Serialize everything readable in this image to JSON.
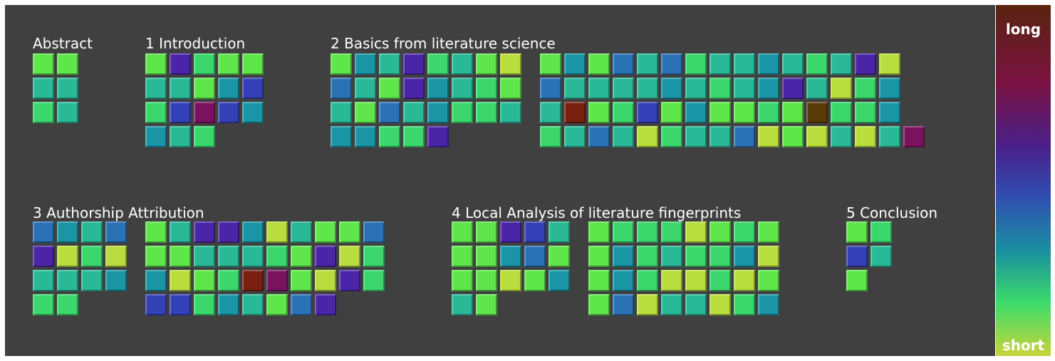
{
  "chart_data": {
    "type": "heatmap",
    "colors": {
      "Y": "#b9dd3c",
      "G": "#5ee64a",
      "E": "#3bd76c",
      "T": "#2ab996",
      "C": "#1a95a5",
      "B": "#2a71b5",
      "D": "#3440b5",
      "P": "#4b25a8",
      "M": "#7a1260",
      "R": "#7a2010",
      "N": "#5a3a08"
    },
    "legend": {
      "top_label": "long",
      "bottom_label": "short"
    },
    "sections": [
      {
        "title": "Abstract",
        "blocks": [
          {
            "rows": [
              "GG",
              "TT",
              "ET"
            ]
          }
        ]
      },
      {
        "title": "1 Introduction",
        "blocks": [
          {
            "rows": [
              "GPEGG",
              "TTGCD",
              "EDMDC",
              "CTE"
            ]
          }
        ]
      },
      {
        "title": "2 Basics from literature science",
        "blocks": [
          {
            "rows": [
              "GCTPETGY",
              "BTGPCTEG",
              "TGBTCEET",
              "CCEEP"
            ]
          },
          {
            "rows": [
              "GCGBTBETTCTETPY",
              "BTTTTCTETCPTYEC",
              "TRGEDGCGGEGNEEC",
              "ETBTYETTBYGYTYTM"
            ]
          }
        ]
      },
      {
        "title": "3 Authorship Attribution",
        "blocks": [
          {
            "rows": [
              "BCTB",
              "PYEY",
              "TTTC",
              "EE"
            ]
          },
          {
            "rows": [
              "GTPPCYTGGB",
              "GGTTTEGPYE",
              "CYGERMGYPE",
              "DDECTGBP"
            ]
          }
        ]
      },
      {
        "title": "4 Local Analysis of literature fingerprints",
        "blocks": [
          {
            "rows": [
              "GGPDT",
              "GGCBG",
              "GGYGC",
              "TG"
            ]
          },
          {
            "rows": [
              "GEEEYGEG",
              "GCETEECY",
              "GCEYYEYG",
              "GBYTTYEC"
            ]
          }
        ]
      },
      {
        "title": "5 Conclusion",
        "blocks": [
          {
            "rows": [
              "GE",
              "DT",
              "G"
            ]
          }
        ]
      }
    ]
  }
}
